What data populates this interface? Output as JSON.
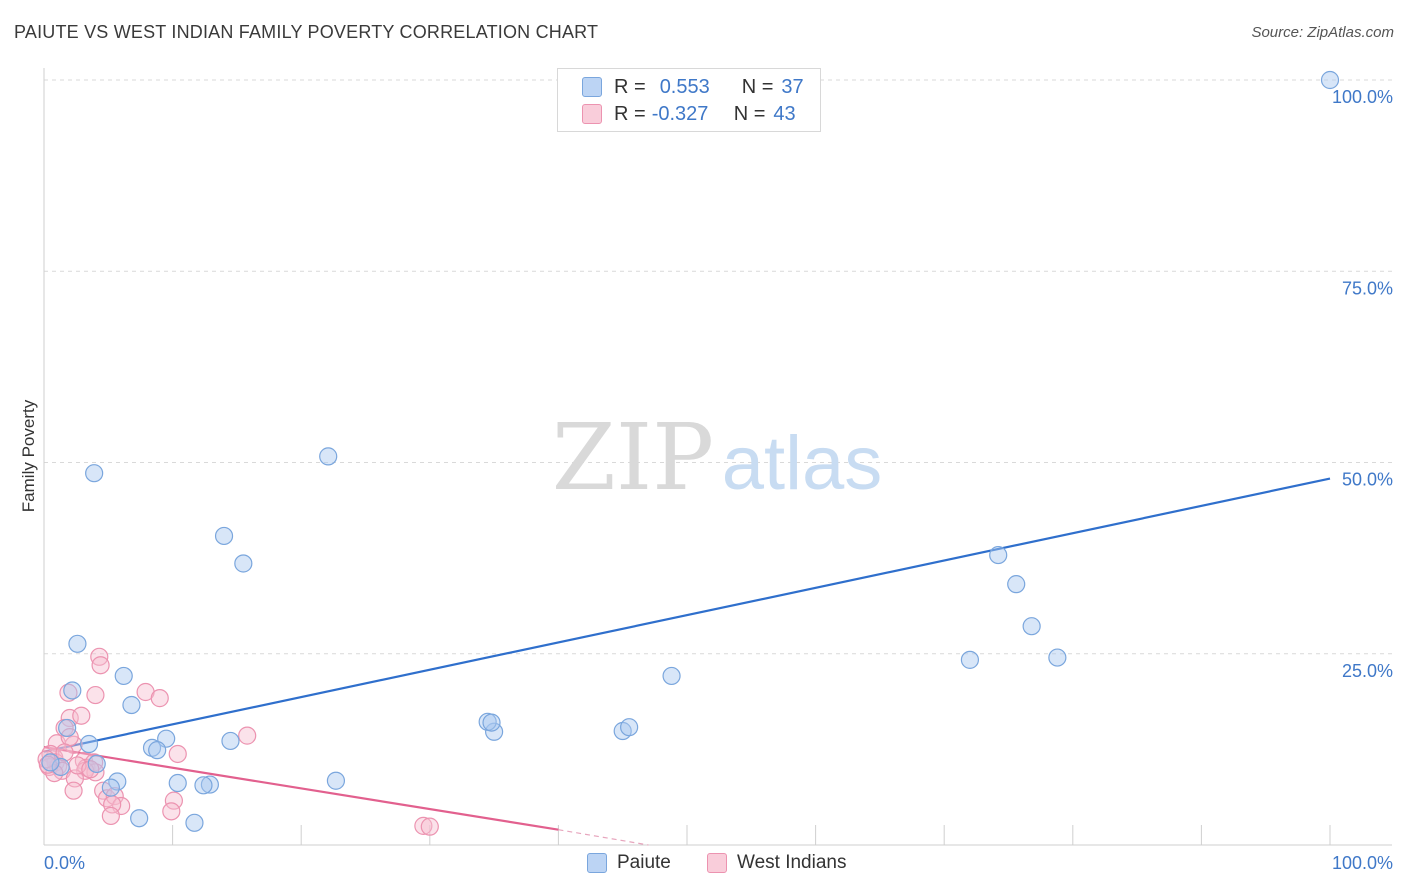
{
  "title": "PAIUTE VS WEST INDIAN FAMILY POVERTY CORRELATION CHART",
  "source": "Source: ZipAtlas.com",
  "watermark": {
    "zip": "ZIP",
    "atlas": "atlas"
  },
  "legend": {
    "rows": [
      {
        "r_label": "R =",
        "r_value": "0.553",
        "n_label": "N =",
        "n_value": "37"
      },
      {
        "r_label": "R =",
        "r_value": "-0.327",
        "n_label": "N =",
        "n_value": "43"
      }
    ]
  },
  "colors": {
    "paiute_fill": "#a9c8f0",
    "paiute_stroke": "#7aa6dd",
    "paiute_line": "#2f6fcc",
    "westindian_fill": "#f6bfd0",
    "westindian_stroke": "#ec93b0",
    "westindian_line": "#e2608e",
    "grid": "#d9d9d9",
    "tick_text": "#3f78c8"
  },
  "chart_data": {
    "type": "scatter",
    "title": "PAIUTE VS WEST INDIAN FAMILY POVERTY CORRELATION CHART",
    "xlabel": "",
    "ylabel": "Family Poverty",
    "xlim": [
      0,
      100
    ],
    "ylim": [
      0,
      100
    ],
    "x_tick_labels": [
      "0.0%",
      "100.0%"
    ],
    "y_tick_labels": [
      "100.0%",
      "75.0%",
      "50.0%",
      "25.0%"
    ],
    "y_ticks": [
      100,
      75,
      50,
      25
    ],
    "grid": true,
    "legend_position": "bottom",
    "series": [
      {
        "name": "Paiute",
        "r": 0.553,
        "n": 37,
        "trend": {
          "x0": 0,
          "y0": 12.2,
          "x1": 100,
          "y1": 47.9
        },
        "points": [
          [
            100,
            100
          ],
          [
            22.1,
            50.8
          ],
          [
            3.9,
            48.6
          ],
          [
            14,
            40.4
          ],
          [
            15.5,
            36.8
          ],
          [
            74.2,
            37.9
          ],
          [
            75.6,
            34.1
          ],
          [
            76.8,
            28.6
          ],
          [
            78.8,
            24.5
          ],
          [
            72,
            24.2
          ],
          [
            2.6,
            26.3
          ],
          [
            6.2,
            22.1
          ],
          [
            48.8,
            22.1
          ],
          [
            2.2,
            20.2
          ],
          [
            6.8,
            18.3
          ],
          [
            45,
            14.9
          ],
          [
            45.5,
            15.4
          ],
          [
            35,
            14.8
          ],
          [
            34.5,
            16.1
          ],
          [
            34.8,
            16.0
          ],
          [
            9.5,
            13.9
          ],
          [
            14.5,
            13.6
          ],
          [
            1.8,
            15.3
          ],
          [
            3.5,
            13.2
          ],
          [
            8.4,
            12.7
          ],
          [
            8.8,
            12.4
          ],
          [
            4.1,
            10.6
          ],
          [
            1.3,
            10.2
          ],
          [
            5.7,
            8.3
          ],
          [
            10.4,
            8.1
          ],
          [
            12.9,
            7.9
          ],
          [
            12.4,
            7.8
          ],
          [
            22.7,
            8.4
          ],
          [
            5.2,
            7.5
          ],
          [
            7.4,
            3.5
          ],
          [
            11.7,
            2.9
          ],
          [
            0.5,
            10.8
          ]
        ]
      },
      {
        "name": "West Indians",
        "r": -0.327,
        "n": 43,
        "trend": {
          "x0": 0,
          "y0": 12.8,
          "x1": 40,
          "y1": 2.0,
          "dash_to_x": 47,
          "dash_to_y": 0
        },
        "points": [
          [
            4.3,
            24.6
          ],
          [
            4.4,
            23.5
          ],
          [
            1.9,
            19.9
          ],
          [
            4.0,
            19.6
          ],
          [
            7.9,
            20.0
          ],
          [
            9.0,
            19.2
          ],
          [
            2.0,
            16.6
          ],
          [
            2.9,
            16.9
          ],
          [
            1.6,
            15.3
          ],
          [
            15.8,
            14.3
          ],
          [
            1.0,
            13.3
          ],
          [
            2.3,
            13.1
          ],
          [
            2.0,
            14.1
          ],
          [
            3.1,
            11.0
          ],
          [
            10.4,
            11.9
          ],
          [
            0.8,
            11.4
          ],
          [
            0.5,
            11.9
          ],
          [
            0.9,
            10.8
          ],
          [
            1.1,
            10.3
          ],
          [
            0.4,
            10.2
          ],
          [
            1.4,
            9.7
          ],
          [
            0.8,
            9.4
          ],
          [
            3.3,
            10.1
          ],
          [
            3.9,
            10.8
          ],
          [
            4.0,
            9.5
          ],
          [
            3.2,
            9.7
          ],
          [
            2.4,
            8.7
          ],
          [
            2.3,
            7.1
          ],
          [
            4.6,
            7.1
          ],
          [
            4.9,
            6.1
          ],
          [
            5.5,
            6.4
          ],
          [
            6.0,
            5.1
          ],
          [
            5.3,
            5.3
          ],
          [
            10.1,
            5.8
          ],
          [
            9.9,
            4.4
          ],
          [
            5.2,
            3.8
          ],
          [
            29.5,
            2.5
          ],
          [
            30.0,
            2.4
          ],
          [
            0.2,
            11.2
          ],
          [
            0.3,
            10.5
          ],
          [
            2.6,
            10.4
          ],
          [
            1.6,
            12.1
          ],
          [
            3.6,
            9.9
          ]
        ]
      }
    ]
  },
  "bottom_legend": {
    "paiute_label": "Paiute",
    "westindian_label": "West Indians"
  }
}
